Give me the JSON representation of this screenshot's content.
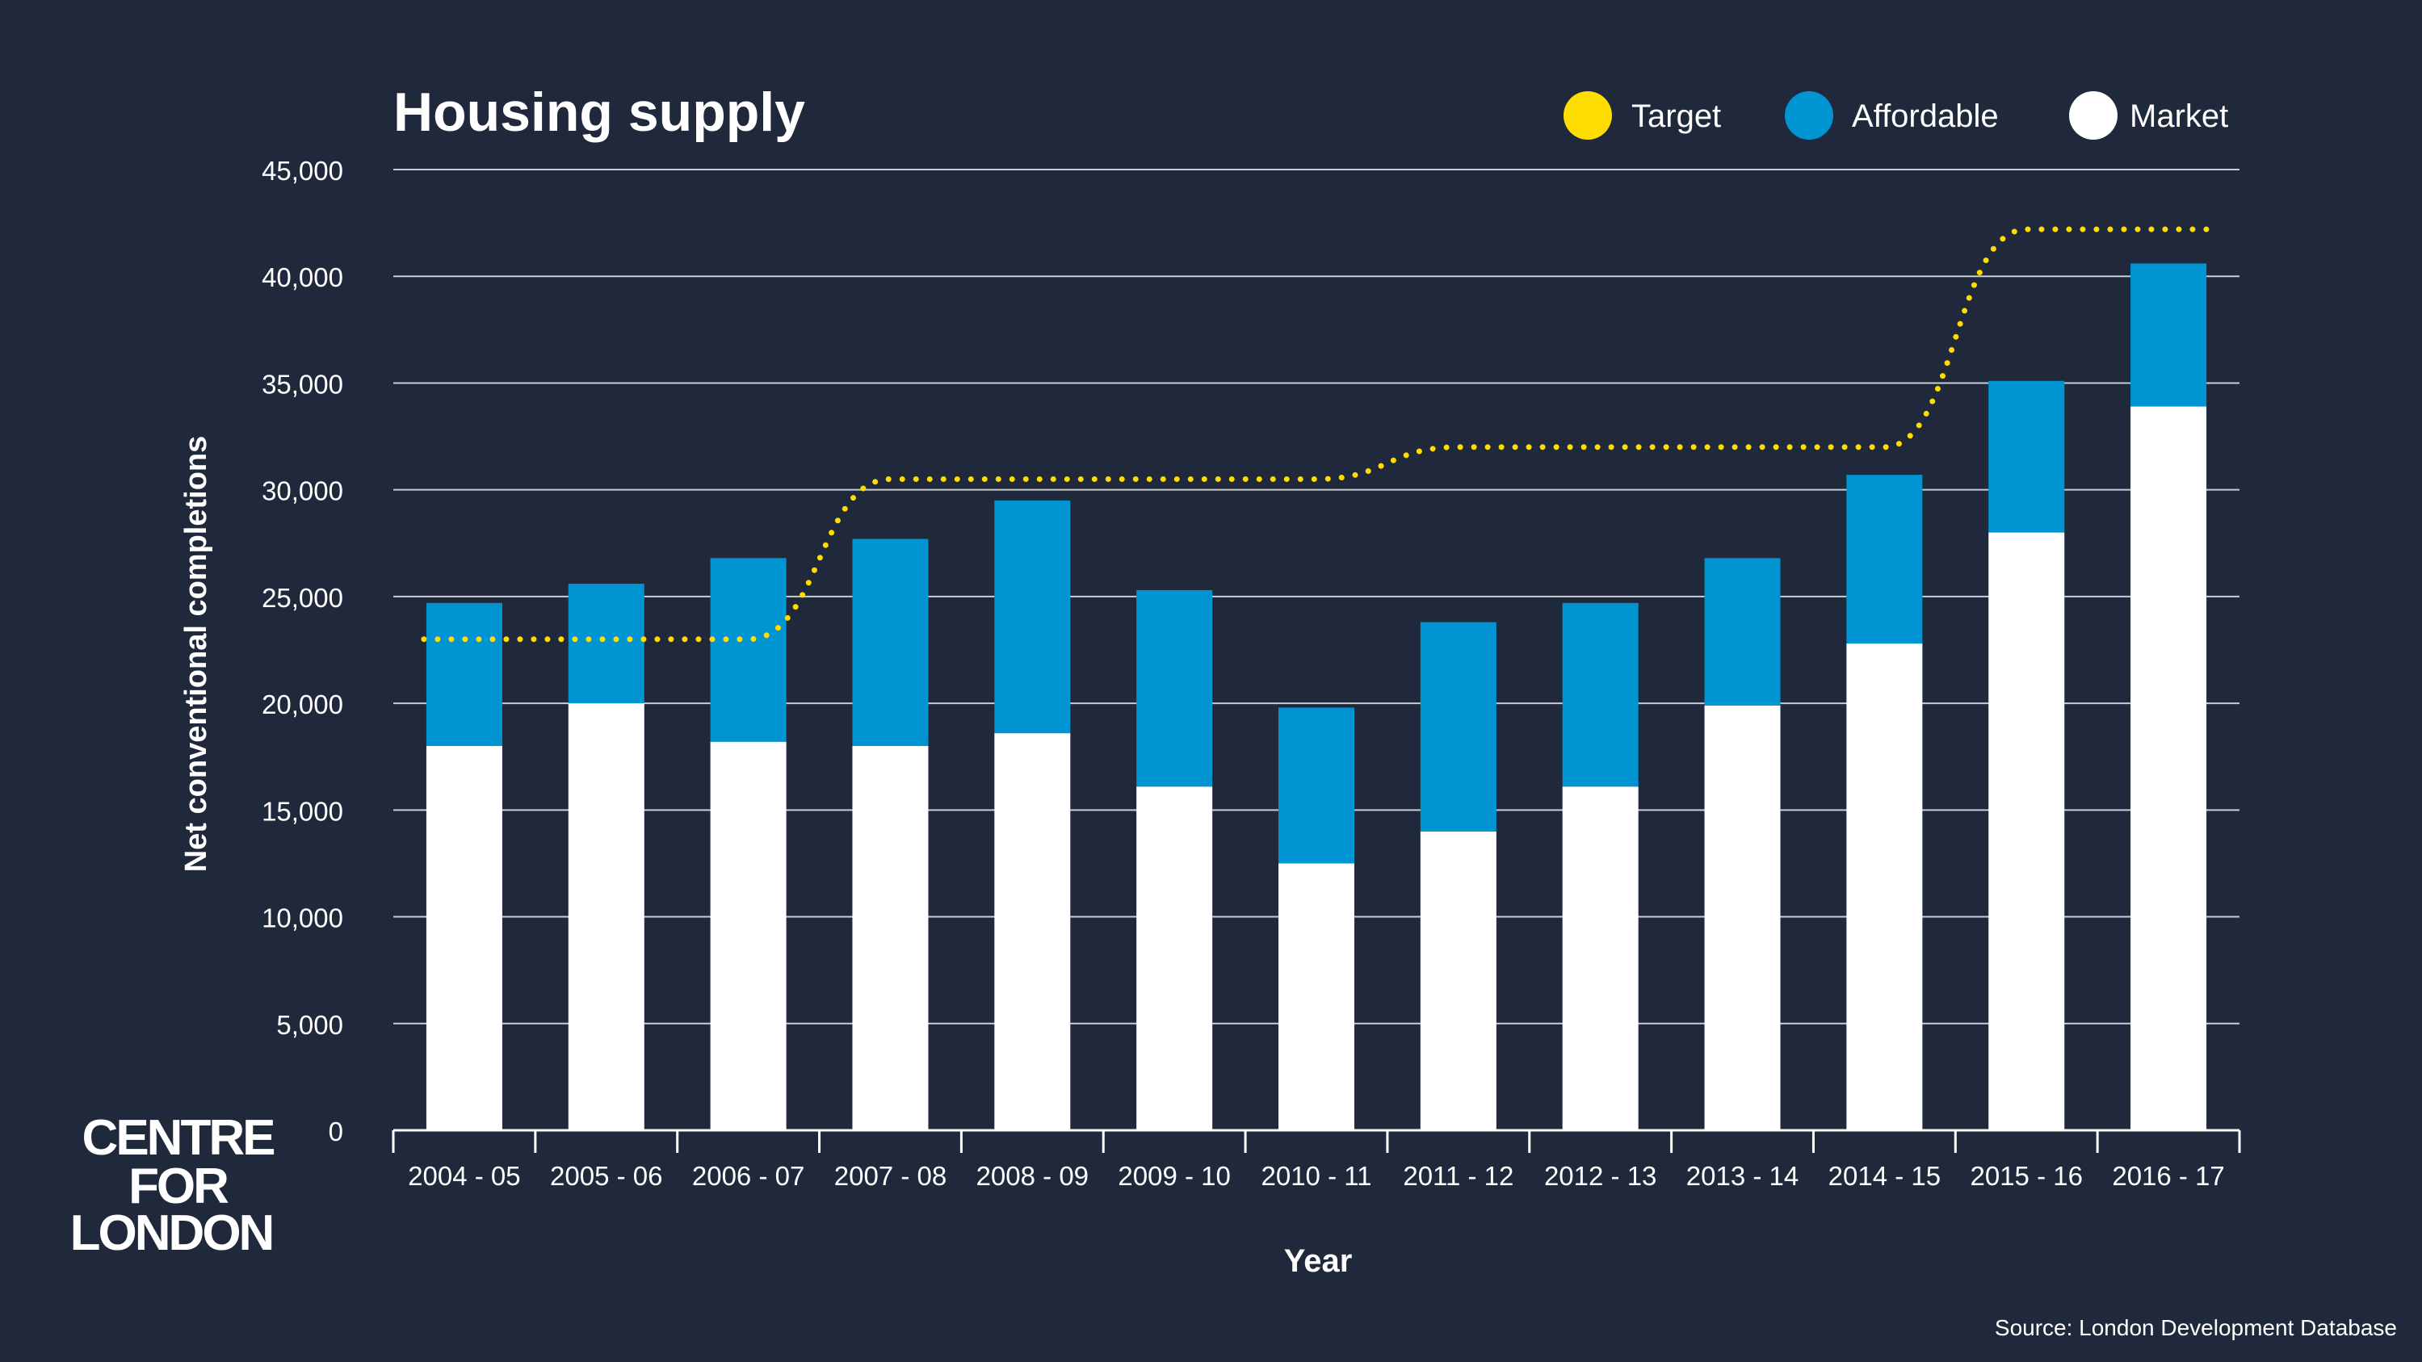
{
  "colors": {
    "background": "#1f293b",
    "target": "#ffdd00",
    "affordable": "#0095d2",
    "market": "#ffffff",
    "gridline": "#c8ccd3"
  },
  "logo": {
    "line1": "CENTRE",
    "line2": "FOR",
    "line3": "LONDON"
  },
  "source": "Source: London Development Database",
  "chart_data": {
    "type": "bar",
    "stacked": true,
    "title": "Housing supply",
    "xlabel": "Year",
    "ylabel": "Net conventional completions",
    "ylim": [
      0,
      45000
    ],
    "yticks": [
      0,
      5000,
      10000,
      15000,
      20000,
      25000,
      30000,
      35000,
      40000,
      45000
    ],
    "ytick_labels": [
      "0",
      "5,000",
      "10,000",
      "15,000",
      "20,000",
      "25,000",
      "30,000",
      "35,000",
      "40,000",
      "45,000"
    ],
    "grid": true,
    "legend": {
      "position": "top-right",
      "entries": [
        "Target",
        "Affordable",
        "Market"
      ]
    },
    "categories": [
      "2004 - 05",
      "2005 - 06",
      "2006 - 07",
      "2007 - 08",
      "2008 - 09",
      "2009 - 10",
      "2010 - 11",
      "2011 - 12",
      "2012 - 13",
      "2013 - 14",
      "2014 - 15",
      "2015 - 16",
      "2016 - 17"
    ],
    "series": [
      {
        "name": "Market",
        "kind": "bar",
        "color": "#ffffff",
        "values": [
          18000,
          20000,
          18200,
          18000,
          18600,
          16100,
          12500,
          14000,
          16100,
          19900,
          22800,
          28000,
          33900
        ]
      },
      {
        "name": "Affordable",
        "kind": "bar",
        "color": "#0095d2",
        "values": [
          6700,
          5600,
          8600,
          9700,
          10900,
          9200,
          7300,
          9800,
          8600,
          6900,
          7900,
          7100,
          6700
        ]
      },
      {
        "name": "Target",
        "kind": "dotted-line",
        "color": "#ffdd00",
        "values": [
          23000,
          23000,
          23000,
          30500,
          30500,
          30500,
          30500,
          32000,
          32000,
          32000,
          32000,
          42200,
          42200
        ]
      }
    ]
  }
}
